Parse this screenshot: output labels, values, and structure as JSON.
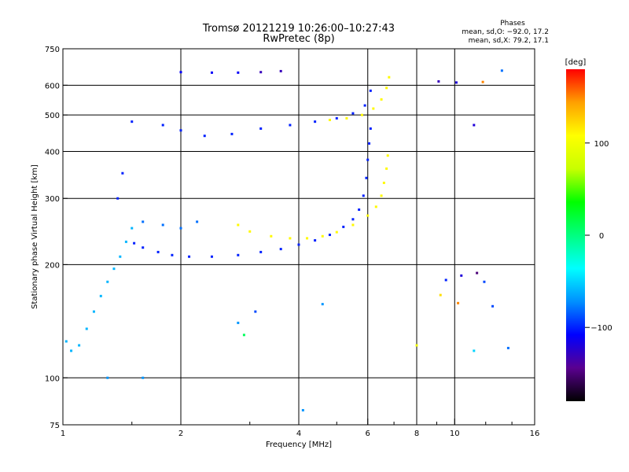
{
  "chart_data": {
    "type": "scatter",
    "title": "Tromsø 20121219 10:26:00–10:27:43",
    "subtitle": "RwPretec (8p)",
    "xlabel": "Frequency [MHz]",
    "ylabel": "Stationary phase Virtual Height [km]",
    "x_scale": "log",
    "y_scale": "log",
    "xlim": [
      1,
      16
    ],
    "ylim": [
      75,
      750
    ],
    "x_ticks": [
      1,
      2,
      4,
      6,
      8,
      10,
      16
    ],
    "x_tick_labels": [
      "1",
      "2",
      "4",
      "6",
      "8",
      "10",
      "16"
    ],
    "x_minor_ticks": [
      1.5,
      3,
      5,
      7,
      9,
      12,
      14
    ],
    "y_ticks": [
      75,
      100,
      200,
      300,
      400,
      500,
      600,
      750
    ],
    "y_tick_labels": [
      "75",
      "100",
      "200",
      "300",
      "400",
      "500",
      "600",
      "750"
    ],
    "grid": true,
    "stats": {
      "heading": "Phases",
      "line1": "mean, sd,O: −92.0, 17.2",
      "line2": "mean, sd,X:  79.2, 17.1"
    },
    "colorbar": {
      "label": "[deg]",
      "range": [
        -180,
        180
      ],
      "ticks": [
        100,
        0,
        -100
      ],
      "tick_labels": [
        "100",
        "0",
        "−100"
      ],
      "palette": [
        "#000000",
        "#5a0090",
        "#0000ff",
        "#0090ff",
        "#00ffff",
        "#00ff80",
        "#00ff00",
        "#c8ff00",
        "#ffff00",
        "#ffa000",
        "#ff0000"
      ]
    },
    "series": [
      {
        "values": [
          {
            "segment": "F-trace lower O-mode",
            "points": [
              [
                1.52,
                228,
                -100
              ],
              [
                1.6,
                222,
                -100
              ],
              [
                1.75,
                216,
                -100
              ],
              [
                1.9,
                212,
                -100
              ],
              [
                2.1,
                210,
                -100
              ],
              [
                2.4,
                210,
                -100
              ],
              [
                2.8,
                212,
                -100
              ],
              [
                3.2,
                216,
                -100
              ],
              [
                3.6,
                220,
                -100
              ],
              [
                4.0,
                226,
                -100
              ],
              [
                4.4,
                232,
                -100
              ],
              [
                4.8,
                240,
                -100
              ],
              [
                5.2,
                252,
                -100
              ],
              [
                5.5,
                264,
                -100
              ],
              [
                5.7,
                280,
                -100
              ],
              [
                5.85,
                305,
                -100
              ],
              [
                5.95,
                340,
                -100
              ],
              [
                6.0,
                380,
                -100
              ],
              [
                6.05,
                420,
                -100
              ],
              [
                6.1,
                460,
                -100
              ]
            ]
          },
          {
            "segment": "F-trace lower X-mode",
            "points": [
              [
                2.8,
                255,
                110
              ],
              [
                3.0,
                245,
                110
              ],
              [
                3.4,
                238,
                110
              ],
              [
                3.8,
                235,
                110
              ],
              [
                4.2,
                235,
                110
              ],
              [
                4.6,
                238,
                110
              ],
              [
                5.0,
                244,
                110
              ],
              [
                5.5,
                255,
                110
              ],
              [
                6.0,
                270,
                110
              ],
              [
                6.3,
                285,
                110
              ],
              [
                6.5,
                305,
                110
              ],
              [
                6.6,
                330,
                110
              ],
              [
                6.7,
                360,
                110
              ],
              [
                6.75,
                390,
                110
              ]
            ]
          },
          {
            "segment": "Low-frequency spread",
            "points": [
              [
                1.02,
                125,
                -60
              ],
              [
                1.05,
                118,
                -60
              ],
              [
                1.1,
                122,
                -60
              ],
              [
                1.15,
                135,
                -60
              ],
              [
                1.2,
                150,
                -60
              ],
              [
                1.25,
                165,
                -60
              ],
              [
                1.3,
                180,
                -60
              ],
              [
                1.35,
                195,
                -60
              ],
              [
                1.4,
                210,
                -60
              ],
              [
                1.45,
                230,
                -60
              ],
              [
                1.5,
                250,
                -60
              ],
              [
                1.38,
                300,
                -100
              ],
              [
                1.42,
                350,
                -100
              ],
              [
                1.6,
                260,
                -80
              ],
              [
                1.8,
                255,
                -80
              ],
              [
                2.0,
                250,
                -80
              ],
              [
                2.2,
                260,
                -80
              ]
            ]
          },
          {
            "segment": "Upper trace O-mode",
            "points": [
              [
                1.5,
                480,
                -100
              ],
              [
                1.8,
                470,
                -100
              ],
              [
                2.0,
                455,
                -100
              ],
              [
                2.3,
                440,
                -100
              ],
              [
                2.7,
                445,
                -100
              ],
              [
                3.2,
                460,
                -100
              ],
              [
                3.8,
                470,
                -100
              ],
              [
                4.4,
                480,
                -100
              ],
              [
                5.0,
                490,
                -100
              ],
              [
                5.5,
                505,
                -100
              ],
              [
                5.9,
                530,
                -100
              ],
              [
                6.1,
                580,
                -100
              ]
            ]
          },
          {
            "segment": "Upper trace X-mode",
            "points": [
              [
                4.8,
                485,
                110
              ],
              [
                5.3,
                490,
                110
              ],
              [
                5.8,
                500,
                110
              ],
              [
                6.2,
                520,
                110
              ],
              [
                6.5,
                550,
                110
              ],
              [
                6.7,
                590,
                110
              ],
              [
                6.8,
                630,
                110
              ]
            ]
          },
          {
            "segment": "Top band",
            "points": [
              [
                2.0,
                650,
                -110
              ],
              [
                2.4,
                648,
                -110
              ],
              [
                2.8,
                648,
                -110
              ],
              [
                3.2,
                650,
                -130
              ],
              [
                3.6,
                654,
                -130
              ]
            ]
          },
          {
            "segment": "Scattered",
            "points": [
              [
                1.6,
                100,
                -70
              ],
              [
                1.3,
                100,
                -70
              ],
              [
                2.8,
                140,
                -70
              ],
              [
                2.9,
                130,
                10
              ],
              [
                3.1,
                150,
                -90
              ],
              [
                4.1,
                82,
                -70
              ],
              [
                4.6,
                157,
                -70
              ],
              [
                8.0,
                122,
                100
              ],
              [
                9.2,
                166,
                120
              ],
              [
                9.5,
                182,
                -100
              ],
              [
                10.4,
                187,
                -120
              ],
              [
                11.4,
                190,
                -150
              ],
              [
                11.9,
                180,
                -90
              ],
              [
                12.5,
                155,
                -90
              ],
              [
                13.7,
                120,
                -80
              ],
              [
                10.2,
                158,
                150
              ],
              [
                11.2,
                118,
                -50
              ],
              [
                9.1,
                614,
                -130
              ],
              [
                10.1,
                610,
                -120
              ],
              [
                11.8,
                612,
                150
              ],
              [
                11.2,
                470,
                -120
              ],
              [
                13.2,
                656,
                -80
              ]
            ]
          }
        ]
      }
    ]
  }
}
